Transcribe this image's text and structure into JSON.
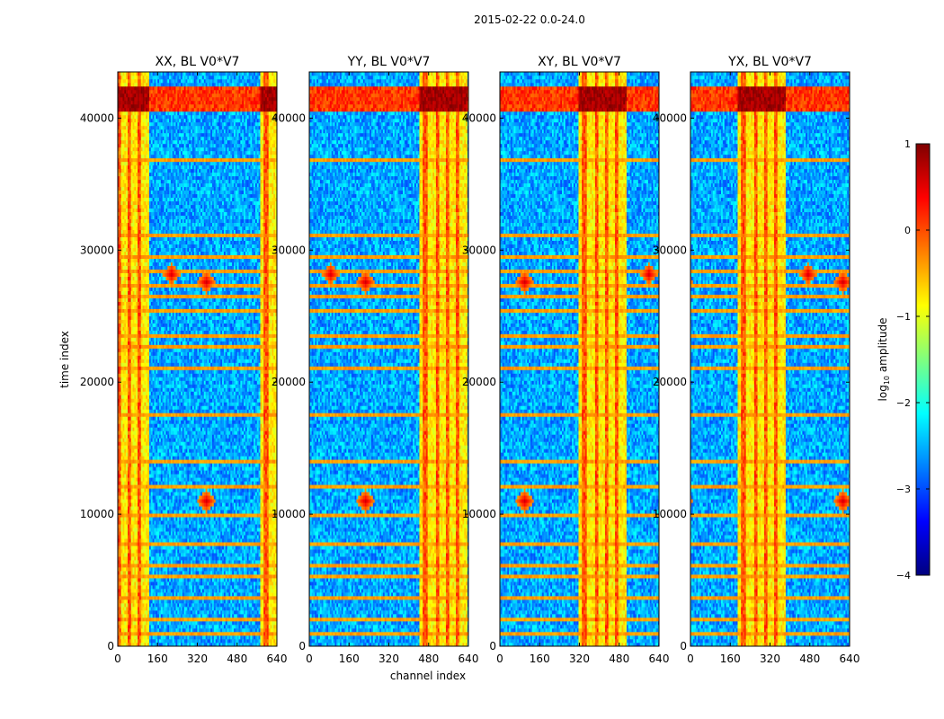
{
  "figure": {
    "title": "2015-02-22 0.0-24.0",
    "xlabel": "channel index",
    "ylabel": "time index"
  },
  "chart_data": {
    "type": "heatmap",
    "title": "2015-02-22 0.0-24.0",
    "xlabel": "channel index",
    "ylabel": "time index",
    "xlim": [
      0,
      640
    ],
    "ylim": [
      0,
      43500
    ],
    "xticks": [
      0,
      160,
      320,
      480,
      640
    ],
    "yticks": [
      0,
      10000,
      20000,
      30000,
      40000
    ],
    "colorbar": {
      "label": "log10 amplitude",
      "label_main": "log",
      "label_sub": "10",
      "label_tail": " amplitude",
      "range": [
        -4,
        1
      ],
      "ticks": [
        1,
        0,
        -1,
        -2,
        -3,
        -4
      ],
      "tick_labels": [
        "1",
        "0",
        "−1",
        "−2",
        "−3",
        "−4"
      ],
      "stops": [
        "#00007f",
        "#0000ff",
        "#007fff",
        "#00ffff",
        "#7fff7f",
        "#ffff00",
        "#ff7f00",
        "#ff0000",
        "#7f0000"
      ]
    },
    "panels": [
      {
        "title": "XX, BL V0*V7"
      },
      {
        "title": "YY, BL V0*V7"
      },
      {
        "title": "XY, BL V0*V7"
      },
      {
        "title": "YX, BL V0*V7"
      }
    ],
    "features": {
      "bright_channel_band": [
        405,
        600
      ],
      "bright_channel_columns": [
        430,
        480,
        520,
        560
      ],
      "high_amplitude_time_range": [
        40500,
        42500
      ],
      "spike_events": [
        {
          "channel": 190,
          "time": 11000
        },
        {
          "channel": 50,
          "time": 28200
        },
        {
          "channel": 190,
          "time": 27600
        }
      ],
      "rfi_time_rows": [
        900,
        2000,
        3600,
        5200,
        6200,
        7800,
        9800,
        12000,
        14000,
        17500,
        21000,
        22800,
        23400,
        25500,
        26600,
        27400,
        28400,
        29400,
        31200,
        36800,
        41300
      ]
    }
  }
}
